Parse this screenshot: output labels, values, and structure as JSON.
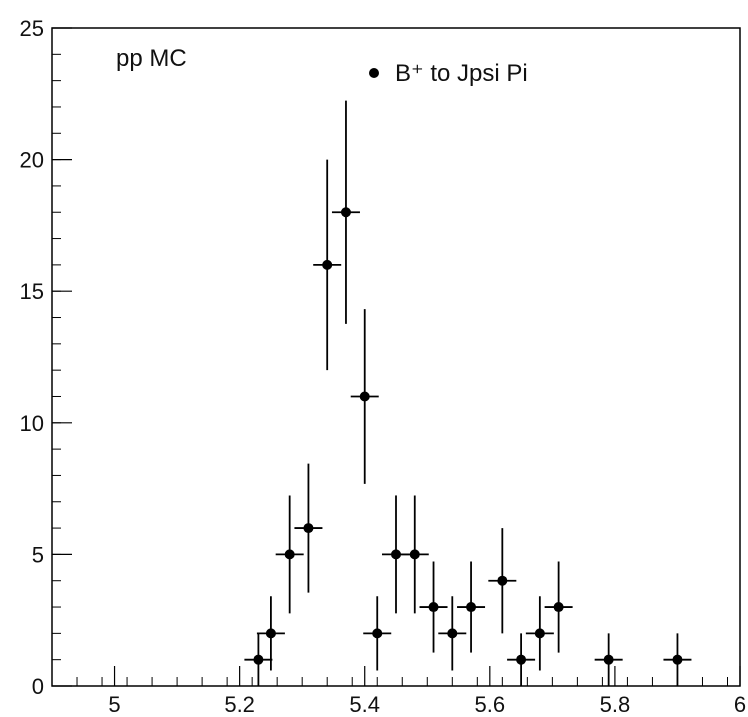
{
  "chart_data": {
    "type": "scatter",
    "title": "",
    "xlabel": "",
    "ylabel": "",
    "xlim": [
      4.9,
      6.0
    ],
    "ylim": [
      0,
      25
    ],
    "grid": false,
    "x_ticks": [
      "5",
      "5.2",
      "5.4",
      "5.6",
      "5.8",
      "6"
    ],
    "x_tick_values": [
      5.0,
      5.2,
      5.4,
      5.6,
      5.8,
      6.0
    ],
    "y_ticks": [
      "0",
      "5",
      "10",
      "15",
      "20",
      "25"
    ],
    "y_tick_values": [
      0,
      5,
      10,
      15,
      20,
      25
    ],
    "annotation": "pp MC",
    "legend_position": "top-center",
    "series": [
      {
        "name": "B⁺ to Jpsi Pi",
        "marker": "filled-circle",
        "color": "#000000",
        "points": [
          {
            "x": 5.23,
            "y": 1,
            "err": 1.0
          },
          {
            "x": 5.25,
            "y": 2,
            "err": 1.41
          },
          {
            "x": 5.28,
            "y": 5,
            "err": 2.24
          },
          {
            "x": 5.31,
            "y": 6,
            "err": 2.45
          },
          {
            "x": 5.34,
            "y": 16,
            "err": 4.0
          },
          {
            "x": 5.37,
            "y": 18,
            "err": 4.24
          },
          {
            "x": 5.4,
            "y": 11,
            "err": 3.32
          },
          {
            "x": 5.42,
            "y": 2,
            "err": 1.41
          },
          {
            "x": 5.45,
            "y": 5,
            "err": 2.24
          },
          {
            "x": 5.48,
            "y": 5,
            "err": 2.24
          },
          {
            "x": 5.51,
            "y": 3,
            "err": 1.73
          },
          {
            "x": 5.54,
            "y": 2,
            "err": 1.41
          },
          {
            "x": 5.57,
            "y": 3,
            "err": 1.73
          },
          {
            "x": 5.62,
            "y": 4,
            "err": 2.0
          },
          {
            "x": 5.65,
            "y": 1,
            "err": 1.0
          },
          {
            "x": 5.68,
            "y": 2,
            "err": 1.41
          },
          {
            "x": 5.71,
            "y": 3,
            "err": 1.73
          },
          {
            "x": 5.79,
            "y": 1,
            "err": 1.0
          },
          {
            "x": 5.9,
            "y": 1,
            "err": 1.0
          }
        ]
      }
    ]
  }
}
